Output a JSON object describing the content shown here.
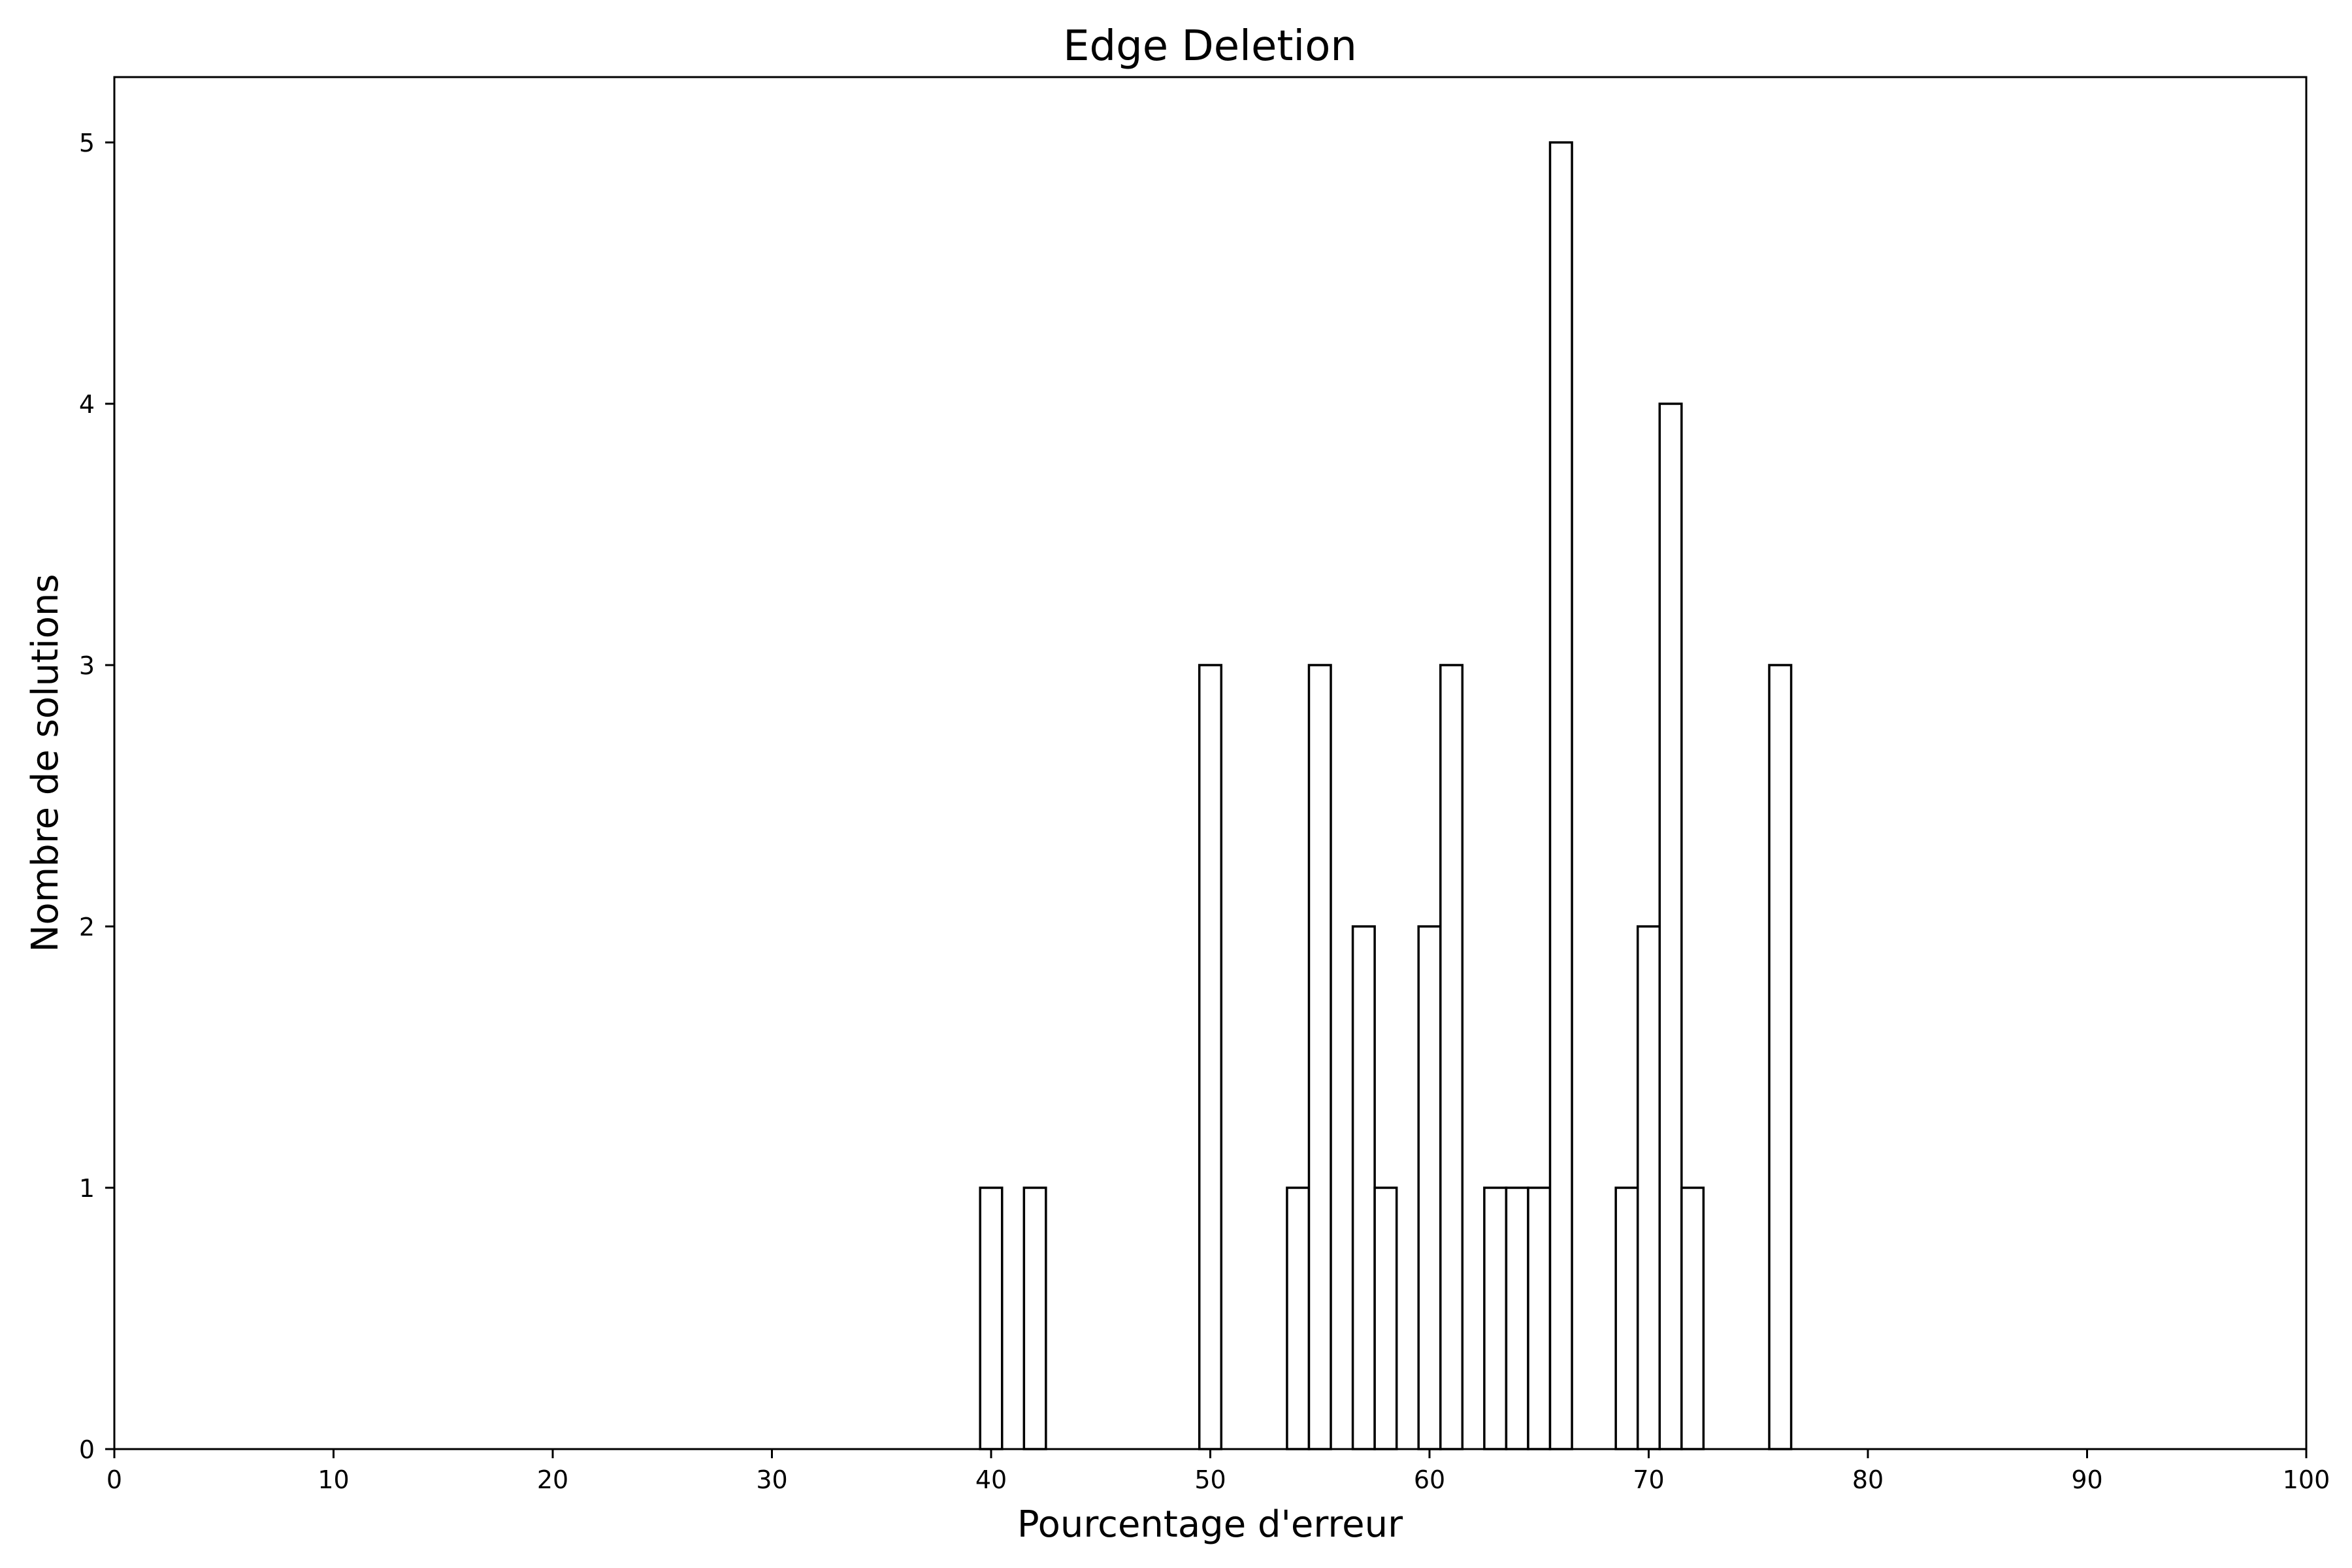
{
  "chart_data": {
    "type": "bar",
    "title": "Edge Deletion",
    "xlabel": "Pourcentage d'erreur",
    "ylabel": "Nombre de solutions",
    "xlim": [
      0,
      100
    ],
    "ylim": [
      0,
      5.25
    ],
    "xticks": [
      0,
      10,
      20,
      30,
      40,
      50,
      60,
      70,
      80,
      90,
      100
    ],
    "yticks": [
      0,
      1,
      2,
      3,
      4,
      5
    ],
    "bin_width": 1,
    "grid": false,
    "bar_fill": "#ffffff",
    "bar_edge": "#000000",
    "bins": [
      {
        "start": 39.5,
        "count": 1
      },
      {
        "start": 41.5,
        "count": 1
      },
      {
        "start": 49.5,
        "count": 3
      },
      {
        "start": 53.5,
        "count": 1
      },
      {
        "start": 54.5,
        "count": 3
      },
      {
        "start": 56.5,
        "count": 2
      },
      {
        "start": 57.5,
        "count": 1
      },
      {
        "start": 59.5,
        "count": 2
      },
      {
        "start": 60.5,
        "count": 3
      },
      {
        "start": 62.5,
        "count": 1
      },
      {
        "start": 63.5,
        "count": 1
      },
      {
        "start": 64.5,
        "count": 1
      },
      {
        "start": 65.5,
        "count": 5
      },
      {
        "start": 68.5,
        "count": 1
      },
      {
        "start": 69.5,
        "count": 2
      },
      {
        "start": 70.5,
        "count": 4
      },
      {
        "start": 71.5,
        "count": 1
      },
      {
        "start": 75.5,
        "count": 3
      }
    ]
  }
}
